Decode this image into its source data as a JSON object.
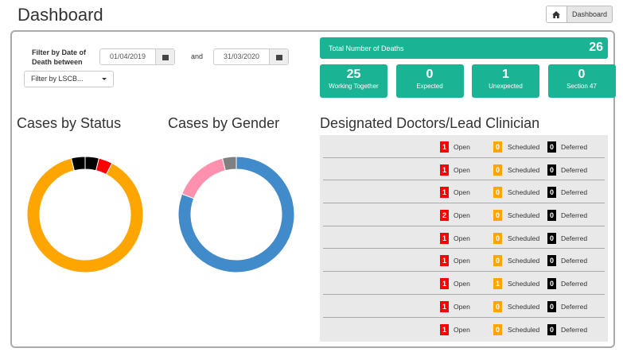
{
  "header": {
    "title": "Dashboard",
    "breadcrumb_current": "Dashboard",
    "home_icon": "home-icon"
  },
  "filter": {
    "label": "Filter by Date of Death between",
    "from": "01/04/2019",
    "and": "and",
    "to": "31/03/2020",
    "lscb": "Filter by LSCB..."
  },
  "totals": {
    "label": "Total Number of Deaths",
    "value": "26",
    "tiles": [
      {
        "value": "25",
        "label": "Working Together"
      },
      {
        "value": "0",
        "label": "Expected"
      },
      {
        "value": "1",
        "label": "Unexpected"
      },
      {
        "value": "0",
        "label": "Section 47"
      }
    ]
  },
  "colors": {
    "teal": "#1ab394",
    "open": "#ff0000",
    "scheduled": "#ffa500",
    "deferred": "#000000",
    "male": "#428bca",
    "female": "#ff91ad",
    "unknown": "#808080"
  },
  "status": {
    "title": "Cases by Status"
  },
  "gender": {
    "title": "Cases by Gender"
  },
  "chart_data": [
    {
      "type": "pie",
      "title": "Cases by Status",
      "slices": [
        {
          "color": "#000000",
          "value": 1
        },
        {
          "color": "#ff0000",
          "value": 1
        },
        {
          "color": "#ffa500",
          "value": 23
        },
        {
          "color": "#000000",
          "value": 1
        }
      ]
    },
    {
      "type": "pie",
      "title": "Cases by Gender",
      "slices": [
        {
          "color": "#428bca",
          "value": 21
        },
        {
          "color": "#ff91ad",
          "value": 4
        },
        {
          "color": "#808080",
          "value": 1
        }
      ]
    }
  ],
  "doctors": {
    "title": "Designated Doctors/Lead Clinician",
    "labels": {
      "open": "Open",
      "scheduled": "Scheduled",
      "deferred": "Deferred"
    },
    "rows": [
      {
        "open": "1",
        "scheduled": "0",
        "deferred": "0"
      },
      {
        "open": "1",
        "scheduled": "0",
        "deferred": "0"
      },
      {
        "open": "1",
        "scheduled": "0",
        "deferred": "0"
      },
      {
        "open": "2",
        "scheduled": "0",
        "deferred": "0"
      },
      {
        "open": "1",
        "scheduled": "0",
        "deferred": "0"
      },
      {
        "open": "1",
        "scheduled": "0",
        "deferred": "0"
      },
      {
        "open": "1",
        "scheduled": "1",
        "deferred": "0"
      },
      {
        "open": "1",
        "scheduled": "0",
        "deferred": "0"
      },
      {
        "open": "1",
        "scheduled": "0",
        "deferred": "0"
      }
    ]
  }
}
